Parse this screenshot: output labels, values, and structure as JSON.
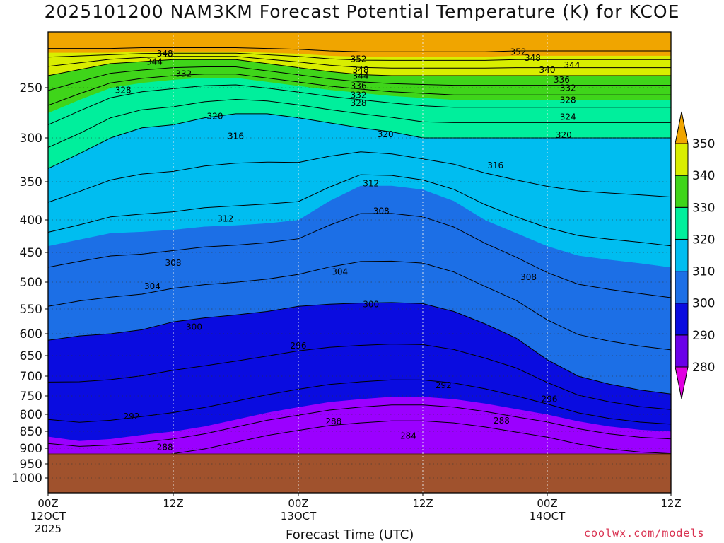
{
  "chart_data": {
    "type": "contour",
    "title": "2025101200 NAM3KM Forecast Potential Temperature (K) for KCOE",
    "xlabel": "Forecast Time (UTC)",
    "x_ticks": [
      {
        "label": "00Z",
        "sub": "12OCT",
        "sub2": "2025"
      },
      {
        "label": "12Z",
        "sub": "",
        "sub2": ""
      },
      {
        "label": "00Z",
        "sub": "13OCT",
        "sub2": ""
      },
      {
        "label": "12Z",
        "sub": "",
        "sub2": ""
      },
      {
        "label": "00Z",
        "sub": "14OCT",
        "sub2": ""
      },
      {
        "label": "12Z",
        "sub": "",
        "sub2": ""
      }
    ],
    "x_hours": [
      0,
      12,
      24,
      36,
      48,
      60
    ],
    "y_ticks": [
      250,
      300,
      350,
      400,
      450,
      500,
      550,
      600,
      650,
      700,
      750,
      800,
      850,
      900,
      950,
      1000
    ],
    "ylim": [
      200,
      1025
    ],
    "terrain_pressure": 925,
    "colorbar": {
      "levels": [
        280,
        290,
        300,
        310,
        320,
        330,
        340,
        350
      ],
      "colors": [
        "#9b00ff",
        "#6a00e8",
        "#0a0ce0",
        "#1c6fe6",
        "#00bdf0",
        "#00ef9c",
        "#3fd51a",
        "#d9ee00",
        "#f0a500"
      ],
      "under_color": "#e000e0"
    },
    "contour_labels": [
      {
        "value": "348",
        "hour": 11.2,
        "p": 216
      },
      {
        "value": "344",
        "hour": 10.2,
        "p": 224
      },
      {
        "value": "332",
        "hour": 13.0,
        "p": 236
      },
      {
        "value": "328",
        "hour": 7.2,
        "p": 252
      },
      {
        "value": "320",
        "hour": 16.0,
        "p": 278
      },
      {
        "value": "316",
        "hour": 18.0,
        "p": 298
      },
      {
        "value": "312",
        "hour": 17.0,
        "p": 398
      },
      {
        "value": "308",
        "hour": 12.0,
        "p": 467
      },
      {
        "value": "304",
        "hour": 10.0,
        "p": 507
      },
      {
        "value": "300",
        "hour": 14.0,
        "p": 586
      },
      {
        "value": "296",
        "hour": 24.0,
        "p": 627
      },
      {
        "value": "292",
        "hour": 8.0,
        "p": 805
      },
      {
        "value": "288",
        "hour": 11.2,
        "p": 896
      },
      {
        "value": "352",
        "hour": 29.8,
        "p": 221
      },
      {
        "value": "348",
        "hour": 30.0,
        "p": 232
      },
      {
        "value": "344",
        "hour": 30.0,
        "p": 238
      },
      {
        "value": "336",
        "hour": 29.8,
        "p": 248
      },
      {
        "value": "332",
        "hour": 29.8,
        "p": 257
      },
      {
        "value": "328",
        "hour": 29.8,
        "p": 265
      },
      {
        "value": "320",
        "hour": 32.4,
        "p": 296
      },
      {
        "value": "312",
        "hour": 31.0,
        "p": 352
      },
      {
        "value": "308",
        "hour": 32.0,
        "p": 388
      },
      {
        "value": "304",
        "hour": 28.0,
        "p": 482
      },
      {
        "value": "300",
        "hour": 31.0,
        "p": 541
      },
      {
        "value": "292",
        "hour": 38.0,
        "p": 722
      },
      {
        "value": "288",
        "hour": 27.4,
        "p": 820
      },
      {
        "value": "284",
        "hour": 34.6,
        "p": 862
      },
      {
        "value": "288",
        "hour": 43.6,
        "p": 818
      },
      {
        "value": "296",
        "hour": 48.2,
        "p": 758
      },
      {
        "value": "308",
        "hour": 46.2,
        "p": 491
      },
      {
        "value": "316",
        "hour": 43.0,
        "p": 331
      },
      {
        "value": "320",
        "hour": 49.6,
        "p": 297
      },
      {
        "value": "324",
        "hour": 50.0,
        "p": 279
      },
      {
        "value": "328",
        "hour": 50.0,
        "p": 262
      },
      {
        "value": "332",
        "hour": 50.0,
        "p": 250
      },
      {
        "value": "336",
        "hour": 49.4,
        "p": 242
      },
      {
        "value": "340",
        "hour": 48.0,
        "p": 232
      },
      {
        "value": "344",
        "hour": 50.4,
        "p": 227
      },
      {
        "value": "348",
        "hour": 46.6,
        "p": 220
      },
      {
        "value": "352",
        "hour": 45.2,
        "p": 214
      }
    ]
  },
  "x_axis_title": "Forecast Time (UTC)",
  "credit": "coolwx.com/models"
}
